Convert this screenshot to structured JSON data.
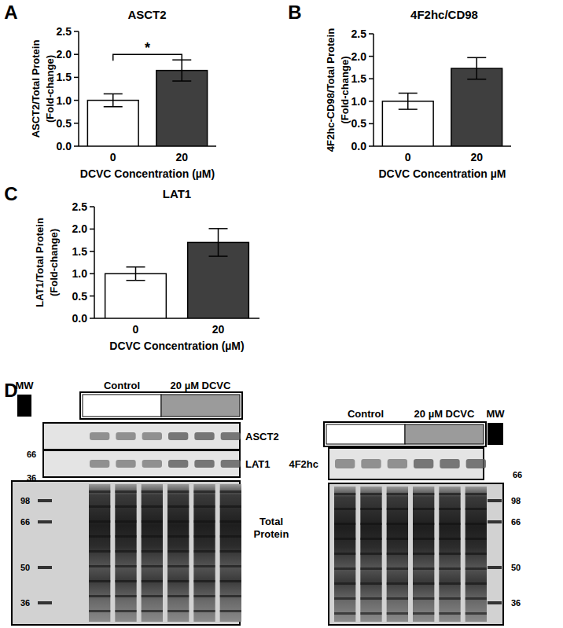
{
  "chart_data": [
    {
      "type": "bar",
      "panel": "A",
      "title": "ASCT2",
      "y_label": [
        "ASCT2/Total Protein",
        "(Fold-change)"
      ],
      "x_label": "DCVC Concentration (µM)",
      "categories": [
        "0",
        "20"
      ],
      "values": [
        1.0,
        1.65
      ],
      "errors": [
        0.14,
        0.23
      ],
      "colors": [
        "#ffffff",
        "#3f3f3f"
      ],
      "ylim": [
        0,
        2.5
      ],
      "yticks": [
        {
          "value": 0,
          "label": "0.0"
        },
        0.5,
        {
          "value": 1,
          "label": "1.0"
        },
        1.5,
        {
          "value": 2,
          "label": "2.0"
        },
        2.5
      ],
      "annotations": [
        {
          "text": "*",
          "y": 2.0
        }
      ]
    },
    {
      "type": "bar",
      "panel": "B",
      "title": "4F2hc/CD98",
      "y_label": [
        "4F2hc-CD98/Total Protein",
        "(Fold-change)"
      ],
      "x_label": "DCVC Concentration µM",
      "categories": [
        "0",
        "20"
      ],
      "values": [
        1.0,
        1.73
      ],
      "errors": [
        0.18,
        0.24
      ],
      "colors": [
        "#ffffff",
        "#3f3f3f"
      ],
      "ylim": [
        0,
        2.5
      ],
      "yticks": [
        {
          "value": 0,
          "label": "0.0"
        },
        0.5,
        {
          "value": 1,
          "label": "1.0"
        },
        1.5,
        {
          "value": 2,
          "label": "2.0"
        },
        2.5
      ]
    },
    {
      "type": "bar",
      "panel": "C",
      "title": "LAT1",
      "y_label": [
        "LAT1/Total Protein",
        "(Fold-change)"
      ],
      "x_label": "DCVC Concentration (µM)",
      "categories": [
        "0",
        "20"
      ],
      "values": [
        1.0,
        1.7
      ],
      "errors": [
        0.15,
        0.31
      ],
      "colors": [
        "#ffffff",
        "#3f3f3f"
      ],
      "ylim": [
        0,
        2.5
      ],
      "yticks": [
        {
          "value": 0,
          "label": "0.0"
        },
        0.5,
        {
          "value": 1,
          "label": "1.0"
        },
        1.5,
        {
          "value": 2,
          "label": "2.0"
        },
        2.5
      ]
    }
  ],
  "blot_panel": {
    "label": "D",
    "total_label": "Total Protein",
    "blots": [
      {
        "mw": "MW",
        "groups": [
          "Control",
          "20 µM DCVC"
        ],
        "bands": [
          {
            "name": "ASCT2",
            "mw": 66
          },
          {
            "name": "LAT1",
            "mw": 36
          }
        ],
        "total_mw": [
          98,
          66,
          50,
          36
        ]
      },
      {
        "mw": "MW",
        "groups": [
          "Control",
          "20 µM DCVC"
        ],
        "bands": [
          {
            "name": "4F2hc",
            "mw": 66
          }
        ],
        "total_mw": [
          98,
          66,
          50,
          36
        ]
      }
    ]
  }
}
